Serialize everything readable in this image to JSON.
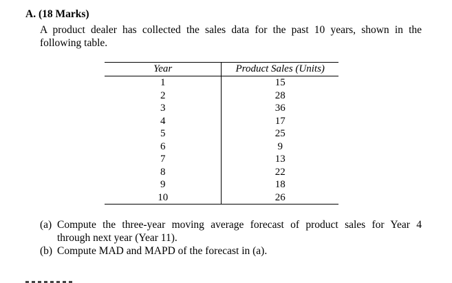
{
  "section": {
    "label": "A.",
    "marks": "(18 Marks)"
  },
  "intro": {
    "line1": "A product dealer has collected the sales data for the past 10 years, shown in the",
    "line2": "following table."
  },
  "table": {
    "headers": [
      "Year",
      "Product Sales (Units)"
    ],
    "rows": [
      [
        "1",
        "15"
      ],
      [
        "2",
        "28"
      ],
      [
        "3",
        "36"
      ],
      [
        "4",
        "17"
      ],
      [
        "5",
        "25"
      ],
      [
        "6",
        "9"
      ],
      [
        "7",
        "13"
      ],
      [
        "8",
        "22"
      ],
      [
        "9",
        "18"
      ],
      [
        "10",
        "26"
      ]
    ]
  },
  "questions": {
    "a": {
      "label": "(a)",
      "line1": "Compute the three-year moving average forecast of product sales for Year 4",
      "line2": "through next year (Year 11)."
    },
    "b": {
      "label": "(b)",
      "text": "Compute MAD and MAPD of the forecast in (a)."
    }
  }
}
